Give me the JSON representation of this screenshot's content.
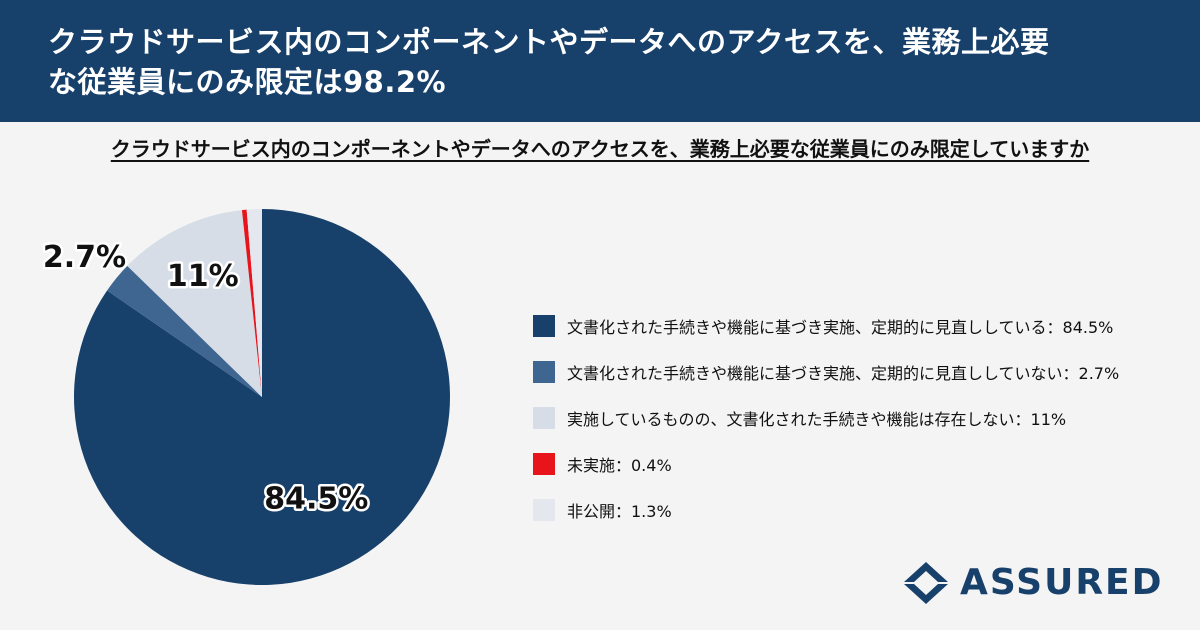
{
  "header": {
    "title_line1": "クラウドサービス内のコンポーネントやデータへのアクセスを、業務上必要",
    "title_line2": "な従業員にのみ限定は98.2%"
  },
  "question": "クラウドサービス内のコンポーネントやデータへのアクセスを、業務上必要な従業員にのみ限定していますか",
  "chart_data": {
    "type": "pie",
    "categories": [
      "文書化された手続きや機能に基づき実施、定期的に見直ししている",
      "文書化された手続きや機能に基づき実施、定期的に見直ししていない",
      "実施しているものの、文書化された手続きや機能は存在しない",
      "未実施",
      "非公開"
    ],
    "values": [
      84.5,
      2.7,
      11,
      0.4,
      1.3
    ],
    "slice_labels": [
      "84.5%",
      "2.7%",
      "11%",
      "",
      ""
    ],
    "colors": [
      "#17406b",
      "#3f6690",
      "#d6dde7",
      "#e8141b",
      "#e4e8ee"
    ],
    "legend_labels": [
      "文書化された手続きや機能に基づき実施、定期的に見直ししている：84.5%",
      "文書化された手続きや機能に基づき実施、定期的に見直ししていない：2.7%",
      "実施しているものの、文書化された手続きや機能は存在しない：11%",
      "未実施：0.4%",
      "非公開：1.3%"
    ],
    "legend_position": "right"
  },
  "logo": {
    "text": "ASSURED",
    "icon": "assured-logo-icon"
  }
}
